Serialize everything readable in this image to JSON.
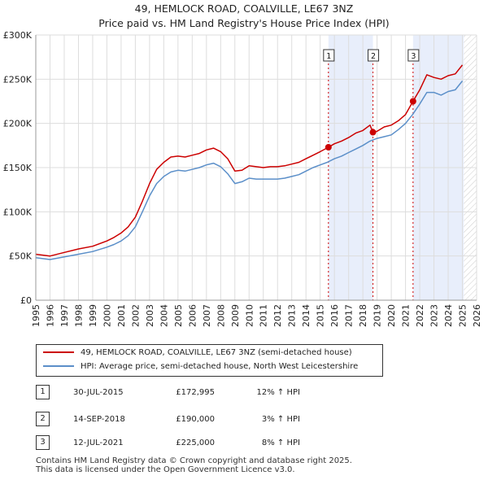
{
  "title": {
    "line1": "49, HEMLOCK ROAD, COALVILLE, LE67 3NZ",
    "line2": "Price paid vs. HM Land Registry's House Price Index (HPI)"
  },
  "colors": {
    "price_line": "#cc0000",
    "hpi_line": "#5b8fc9",
    "shade": "#e8eefb",
    "marker_vline": "#cc0000",
    "grid": "#dddddd",
    "future_hatch": "#cccccc"
  },
  "chart_data": {
    "type": "line",
    "title": "Price paid vs. HM Land Registry's House Price Index (HPI)",
    "xlabel": "",
    "ylabel": "",
    "x_range": [
      1995,
      2026
    ],
    "ylim": [
      0,
      300000
    ],
    "y_ticks": [
      0,
      50000,
      100000,
      150000,
      200000,
      250000,
      300000
    ],
    "y_tick_labels": [
      "£0",
      "£50K",
      "£100K",
      "£150K",
      "£200K",
      "£250K",
      "£300K"
    ],
    "x_ticks": [
      1995,
      1996,
      1997,
      1998,
      1999,
      2000,
      2001,
      2002,
      2003,
      2004,
      2005,
      2006,
      2007,
      2008,
      2009,
      2010,
      2011,
      2012,
      2013,
      2014,
      2015,
      2016,
      2017,
      2018,
      2019,
      2020,
      2021,
      2022,
      2023,
      2024,
      2025,
      2026
    ],
    "x_tick_labels": [
      "1995",
      "1996",
      "1997",
      "1998",
      "1999",
      "2000",
      "2001",
      "2002",
      "2003",
      "2004",
      "2005",
      "2006",
      "2007",
      "2008",
      "2009",
      "2010",
      "2011",
      "2012",
      "2013",
      "2014",
      "2015",
      "2016",
      "2017",
      "2018",
      "2019",
      "2020",
      "2021",
      "2022",
      "2023",
      "2024",
      "2025",
      "2026"
    ],
    "grid": true,
    "shaded_ranges": [
      [
        2015.58,
        2018.71
      ],
      [
        2021.53,
        2025.1
      ]
    ],
    "future_from": 2025.1,
    "series": [
      {
        "name": "49, HEMLOCK ROAD, COALVILLE, LE67 3NZ (semi-detached house)",
        "x": [
          1995.0,
          1996.0,
          1997.0,
          1998.0,
          1999.0,
          2000.0,
          2000.5,
          2001.0,
          2001.5,
          2002.0,
          2002.5,
          2003.0,
          2003.5,
          2004.0,
          2004.5,
          2005.0,
          2005.5,
          2006.0,
          2006.5,
          2007.0,
          2007.5,
          2008.0,
          2008.5,
          2009.0,
          2009.5,
          2010.0,
          2010.5,
          2011.0,
          2011.5,
          2012.0,
          2012.5,
          2013.0,
          2013.5,
          2014.0,
          2014.5,
          2015.0,
          2015.58,
          2016.0,
          2016.5,
          2017.0,
          2017.5,
          2018.0,
          2018.5,
          2018.71,
          2019.0,
          2019.5,
          2020.0,
          2020.5,
          2021.0,
          2021.53,
          2022.0,
          2022.5,
          2023.0,
          2023.5,
          2024.0,
          2024.5,
          2025.0
        ],
        "values": [
          52000,
          50000,
          54000,
          58000,
          61000,
          67000,
          71000,
          76000,
          83000,
          94000,
          112000,
          132000,
          148000,
          156000,
          162000,
          163000,
          162000,
          164000,
          166000,
          170000,
          172000,
          168000,
          160000,
          146000,
          147000,
          152000,
          151000,
          150000,
          151000,
          151000,
          152000,
          154000,
          156000,
          160000,
          164000,
          168000,
          172995,
          177000,
          180000,
          184000,
          189000,
          192000,
          198000,
          190000,
          191000,
          196000,
          198000,
          203000,
          210000,
          225000,
          238000,
          255000,
          252000,
          250000,
          254000,
          256000,
          266000
        ]
      },
      {
        "name": "HPI: Average price, semi-detached house, North West Leicestershire",
        "x": [
          1995.0,
          1996.0,
          1997.0,
          1998.0,
          1999.0,
          2000.0,
          2000.5,
          2001.0,
          2001.5,
          2002.0,
          2002.5,
          2003.0,
          2003.5,
          2004.0,
          2004.5,
          2005.0,
          2005.5,
          2006.0,
          2006.5,
          2007.0,
          2007.5,
          2008.0,
          2008.5,
          2009.0,
          2009.5,
          2010.0,
          2010.5,
          2011.0,
          2011.5,
          2012.0,
          2012.5,
          2013.0,
          2013.5,
          2014.0,
          2014.5,
          2015.0,
          2015.5,
          2016.0,
          2016.5,
          2017.0,
          2017.5,
          2018.0,
          2018.5,
          2019.0,
          2019.5,
          2020.0,
          2020.5,
          2021.0,
          2021.5,
          2022.0,
          2022.5,
          2023.0,
          2023.5,
          2024.0,
          2024.5,
          2025.0
        ],
        "values": [
          48000,
          46000,
          49000,
          52000,
          55000,
          60000,
          63000,
          67000,
          73000,
          83000,
          100000,
          118000,
          132000,
          140000,
          145000,
          147000,
          146000,
          148000,
          150000,
          153000,
          155000,
          151000,
          143000,
          132000,
          134000,
          138000,
          137000,
          137000,
          137000,
          137000,
          138000,
          140000,
          142000,
          146000,
          150000,
          153000,
          156000,
          160000,
          163000,
          167000,
          171000,
          175000,
          180000,
          183000,
          185000,
          187000,
          193000,
          200000,
          210000,
          222000,
          235000,
          235000,
          232000,
          236000,
          238000,
          248000
        ]
      }
    ],
    "markers": [
      {
        "label": "1",
        "x": 2015.58,
        "y": 172995
      },
      {
        "label": "2",
        "x": 2018.71,
        "y": 190000
      },
      {
        "label": "3",
        "x": 2021.53,
        "y": 225000
      }
    ]
  },
  "legend": {
    "items": [
      {
        "label": "49, HEMLOCK ROAD, COALVILLE, LE67 3NZ (semi-detached house)"
      },
      {
        "label": "HPI: Average price, semi-detached house, North West Leicestershire"
      }
    ]
  },
  "transactions": [
    {
      "num": "1",
      "date": "30-JUL-2015",
      "price": "£172,995",
      "hpi": "12% ↑ HPI"
    },
    {
      "num": "2",
      "date": "14-SEP-2018",
      "price": "£190,000",
      "hpi": "3% ↑ HPI"
    },
    {
      "num": "3",
      "date": "12-JUL-2021",
      "price": "£225,000",
      "hpi": "8% ↑ HPI"
    }
  ],
  "footer": {
    "line1": "Contains HM Land Registry data © Crown copyright and database right 2025.",
    "line2": "This data is licensed under the Open Government Licence v3.0."
  }
}
